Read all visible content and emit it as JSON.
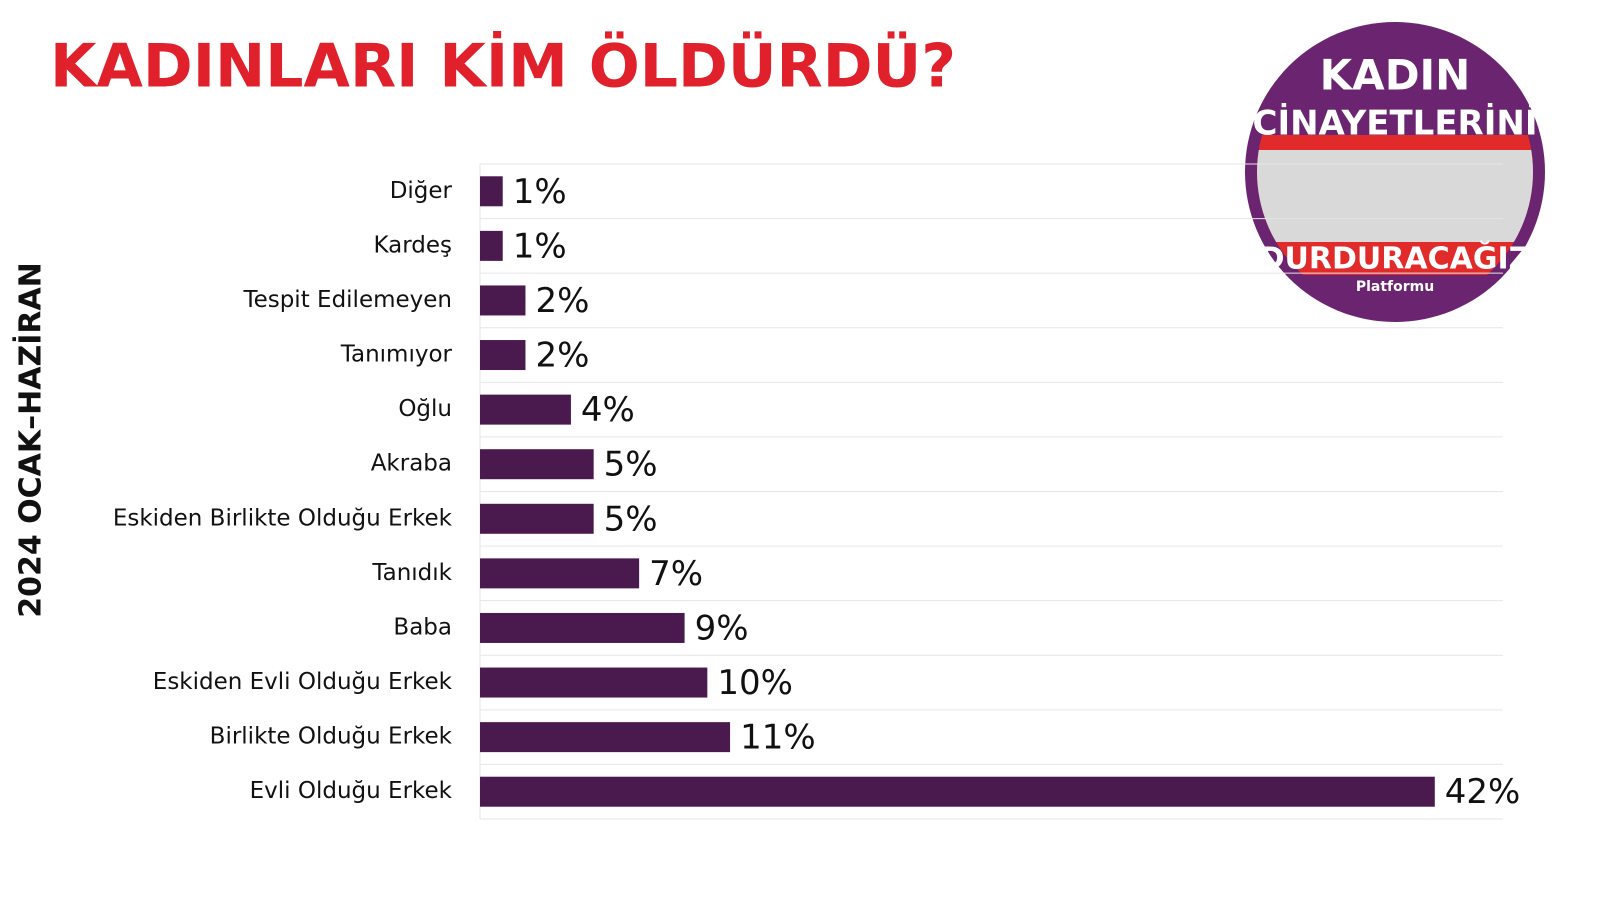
{
  "chart_data": {
    "type": "hbar",
    "title": "KADINLARI KİM ÖLDÜRDÜ?",
    "y_label": "2024 OCAK–HAZİRAN",
    "categories": [
      "Diğer",
      "Kardeş",
      "Tespit Edilemeyen",
      "Tanımıyor",
      "Oğlu",
      "Akraba",
      "Eskiden Birlikte Olduğu Erkek",
      "Tanıdık",
      "Baba",
      "Eskiden Evli Olduğu Erkek",
      "Birlikte Olduğu Erkek",
      "Evli Olduğu Erkek"
    ],
    "values": [
      1,
      1,
      2,
      2,
      4,
      5,
      5,
      7,
      9,
      10,
      11,
      42
    ],
    "value_labels": [
      "1%",
      "1%",
      "2%",
      "2%",
      "4%",
      "5%",
      "5%",
      "7%",
      "9%",
      "10%",
      "11%",
      "42%"
    ],
    "color": "#4a1a4f",
    "xlim": [
      0,
      45
    ]
  },
  "logo": {
    "line1": "KADIN",
    "line2": "CİNAYETLERİNİ",
    "line3": "DURDURACAĞIZ",
    "line4": "Platformu"
  }
}
